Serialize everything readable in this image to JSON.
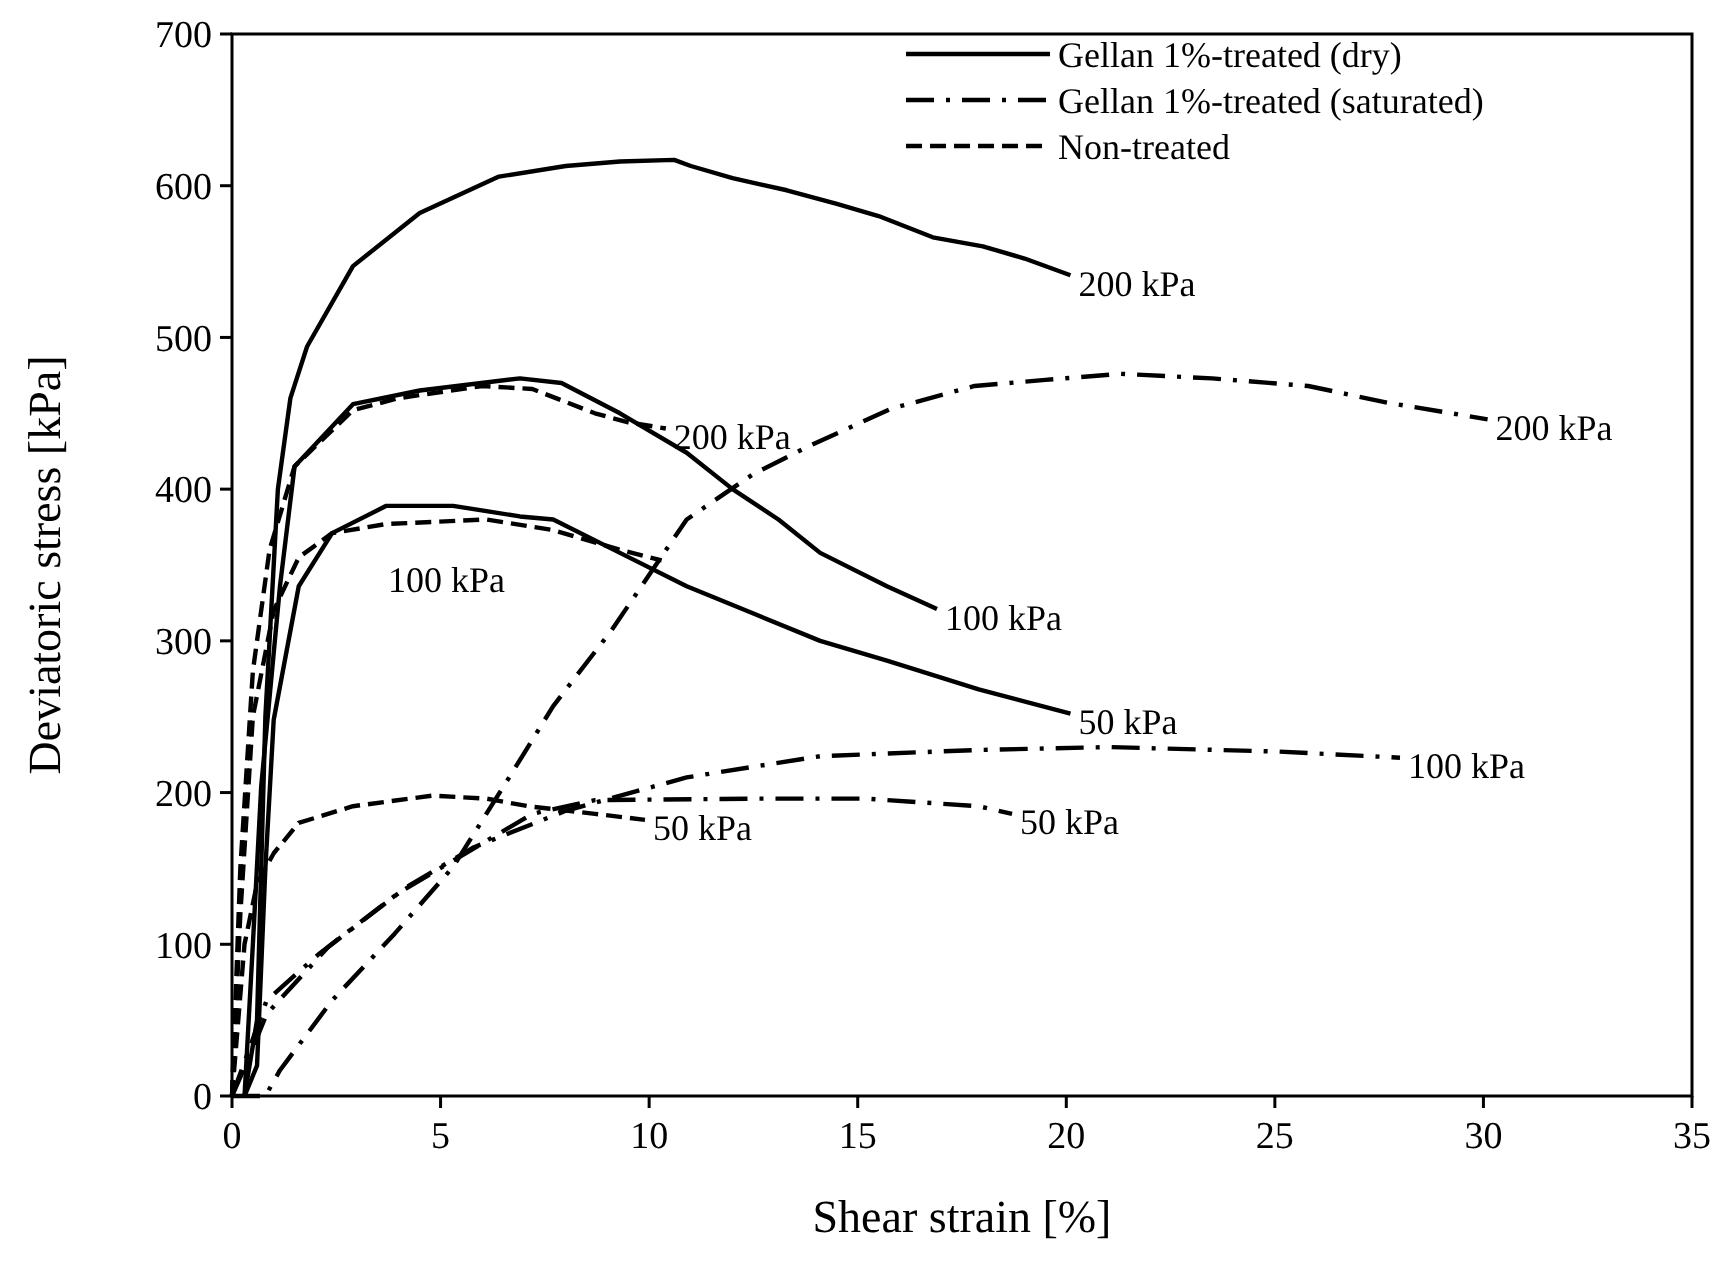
{
  "chart_data": {
    "type": "line",
    "xlabel": "Shear strain [%]",
    "ylabel": "Deviatoric stress [kPa]",
    "xlim": [
      0,
      35
    ],
    "ylim": [
      0,
      700
    ],
    "xticks": [
      0,
      5,
      10,
      15,
      20,
      25,
      30,
      35
    ],
    "yticks": [
      0,
      100,
      200,
      300,
      400,
      500,
      600,
      700
    ],
    "legend": "top right",
    "marker": "none",
    "series": [
      {
        "name": "Gellan 1%-treated (dry)",
        "color": "#000000",
        "line_style": "solid",
        "x": [
          0.3,
          0.6,
          0.8,
          1.1,
          1.4,
          1.8,
          2.9,
          4.5,
          6.4,
          8,
          9.3,
          10.6,
          11,
          12,
          13.3,
          14.5,
          15.5,
          16.8,
          18,
          19,
          20.1
        ],
        "values": [
          0,
          50,
          250,
          400,
          460,
          494,
          547,
          582,
          606,
          613,
          616,
          617,
          613,
          605,
          597,
          588,
          580,
          566,
          560,
          552,
          541
        ]
      },
      {
        "color": "#000000",
        "line_style": "solid",
        "x": [
          0.3,
          0.5,
          0.7,
          1.15,
          1.5,
          2.9,
          4.5,
          6.9,
          7.9,
          9.3,
          10.9,
          12,
          13.1,
          14.1,
          15.7,
          16.9
        ],
        "values": [
          0,
          100,
          204,
          336,
          415,
          456,
          465,
          473,
          470,
          450,
          424,
          400,
          380,
          358,
          336,
          321
        ]
      },
      {
        "color": "#000000",
        "line_style": "solid",
        "x": [
          0.3,
          0.6,
          0.8,
          1,
          1.6,
          2.4,
          3.7,
          5.3,
          6.9,
          7.7,
          9.3,
          10.9,
          12.5,
          14.1,
          15.7,
          17.9,
          20.1
        ],
        "values": [
          0,
          20,
          150,
          248,
          336,
          371,
          389,
          389,
          382,
          380,
          358,
          336,
          318,
          300,
          287,
          268,
          252
        ]
      },
      {
        "name": "Gellan 1%-treated (saturated)",
        "color": "#000000",
        "line_style": "dashdot",
        "x": [
          0,
          0.8,
          1.15,
          2.4,
          3.9,
          5.3,
          6.6,
          7.7,
          9.1,
          10.9,
          12.5,
          13.8,
          15.8,
          17.8,
          19.5,
          21.3,
          23.5,
          25.8,
          27.7,
          30.1
        ],
        "values": [
          0,
          0,
          17,
          63,
          107,
          151,
          208,
          257,
          307,
          380,
          410,
          428,
          453,
          468,
          472,
          476,
          473,
          468,
          457,
          446
        ]
      },
      {
        "color": "#000000",
        "line_style": "dashdot",
        "x": [
          0,
          0.4,
          0.83,
          2.3,
          4.2,
          5.8,
          8,
          10.9,
          14.1,
          17.8,
          21,
          25.1,
          28
        ],
        "values": [
          0,
          25,
          54,
          98,
          138,
          164,
          188,
          210,
          224,
          228,
          230,
          227,
          223
        ]
      },
      {
        "color": "#000000",
        "line_style": "dashdot",
        "x": [
          0,
          0.4,
          0.83,
          2.1,
          4,
          5.6,
          7.2,
          8.7,
          12.5,
          15.2,
          17.9,
          18.7
        ],
        "values": [
          0,
          30,
          63,
          94,
          134,
          160,
          186,
          195,
          196,
          196,
          191,
          186
        ]
      },
      {
        "name": "Non-treated",
        "color": "#000000",
        "line_style": "dashed",
        "x": [
          0,
          0.2,
          0.5,
          0.9,
          1.5,
          2.9,
          4,
          6,
          7.2,
          8.7,
          9.5,
          10.4
        ],
        "values": [
          0,
          150,
          280,
          360,
          415,
          452,
          460,
          468,
          466,
          450,
          444,
          440
        ]
      },
      {
        "color": "#000000",
        "line_style": "dashed",
        "x": [
          0,
          0.2,
          0.5,
          1,
          1.6,
          2.4,
          3.7,
          6.1,
          7.7,
          9.3,
          10.3
        ],
        "values": [
          0,
          120,
          250,
          320,
          355,
          371,
          377,
          380,
          373,
          360,
          353
        ]
      },
      {
        "color": "#000000",
        "line_style": "dashed",
        "x": [
          0,
          0.3,
          0.6,
          1,
          1.6,
          2.9,
          4.8,
          6.1,
          7.1,
          8.7,
          9.9
        ],
        "values": [
          0,
          100,
          140,
          160,
          180,
          191,
          198,
          196,
          191,
          186,
          182
        ]
      }
    ],
    "annotations": [
      {
        "text": "200 kPa",
        "x": 20.1,
        "y": 541
      },
      {
        "text": "100 kPa",
        "x": 16.9,
        "y": 321
      },
      {
        "text": "50 kPa",
        "x": 20.1,
        "y": 252
      },
      {
        "text": "200 kPa",
        "x": 10.4,
        "y": 440
      },
      {
        "text": "100 kPa",
        "x": 6.1,
        "y": 380
      },
      {
        "text": "50 kPa",
        "x": 9.9,
        "y": 182
      },
      {
        "text": "200 kPa",
        "x": 30.1,
        "y": 446
      },
      {
        "text": "100 kPa",
        "x": 28,
        "y": 223
      },
      {
        "text": "50 kPa",
        "x": 18.7,
        "y": 186
      }
    ]
  }
}
